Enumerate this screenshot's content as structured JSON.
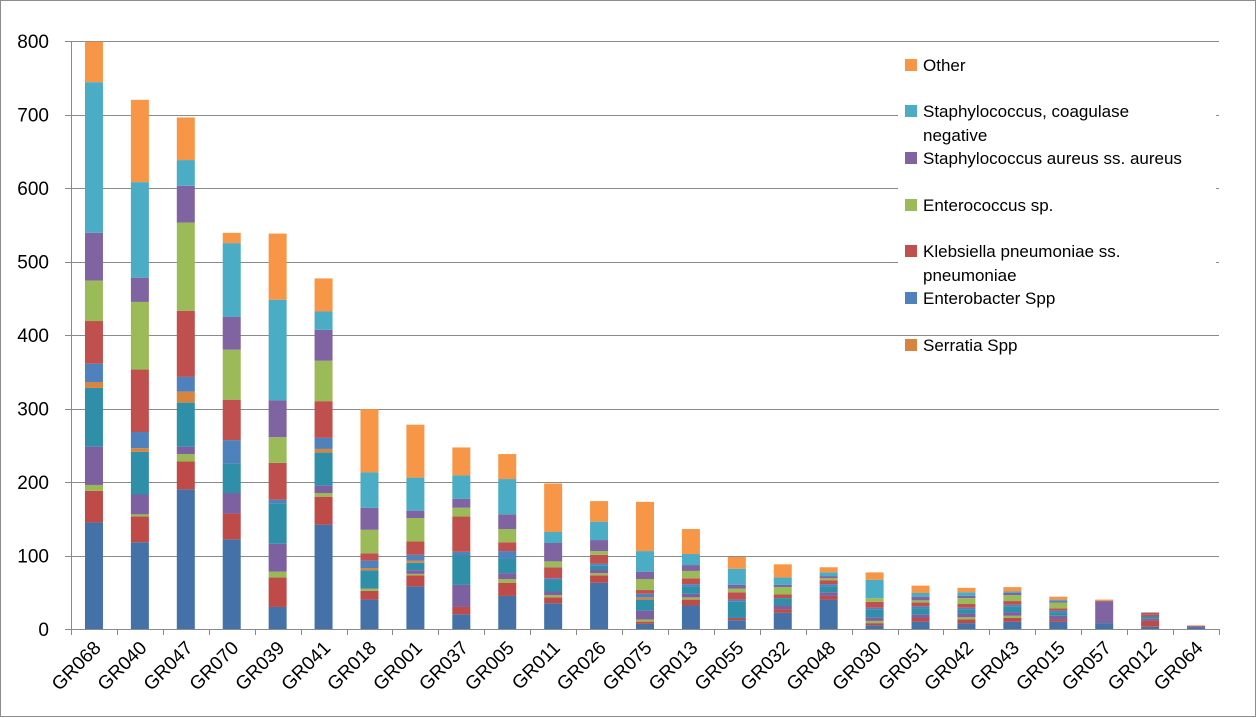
{
  "chart_data": {
    "type": "bar",
    "stacked": true,
    "categories": [
      "GR068",
      "GR040",
      "GR047",
      "GR070",
      "GR039",
      "GR041",
      "GR018",
      "GR001",
      "GR037",
      "GR005",
      "GR011",
      "GR026",
      "GR075",
      "GR013",
      "GR055",
      "GR032",
      "GR048",
      "GR030",
      "GR051",
      "GR042",
      "GR043",
      "GR015",
      "GR057",
      "GR012",
      "GR064"
    ],
    "ylim": [
      0,
      800
    ],
    "yticks": [
      0,
      100,
      200,
      300,
      400,
      500,
      600,
      700,
      800
    ],
    "grid": true,
    "legend_position": "right",
    "series": [
      {
        "name": "",
        "color": "#4472a8",
        "values": [
          145,
          118,
          190,
          122,
          30,
          142,
          40,
          58,
          20,
          45,
          35,
          63,
          7,
          32,
          12,
          22,
          40,
          5,
          10,
          8,
          10,
          10,
          8,
          3,
          2
        ]
      },
      {
        "name": "",
        "color": "#be4b48",
        "values": [
          43,
          35,
          38,
          35,
          40,
          38,
          12,
          15,
          10,
          18,
          8,
          10,
          3,
          8,
          3,
          5,
          5,
          3,
          5,
          5,
          5,
          3,
          0,
          8,
          0
        ]
      },
      {
        "name": "",
        "color": "#98b954",
        "values": [
          8,
          3,
          10,
          0,
          8,
          5,
          3,
          2,
          0,
          5,
          3,
          3,
          3,
          3,
          0,
          0,
          0,
          3,
          0,
          3,
          3,
          0,
          0,
          0,
          0
        ]
      },
      {
        "name": "",
        "color": "#7d60a0",
        "values": [
          52,
          27,
          10,
          28,
          38,
          10,
          0,
          5,
          30,
          8,
          5,
          5,
          12,
          5,
          0,
          5,
          5,
          5,
          5,
          5,
          5,
          5,
          0,
          3,
          0
        ]
      },
      {
        "name": "",
        "color": "#2f8ea8",
        "values": [
          80,
          58,
          60,
          40,
          55,
          45,
          25,
          10,
          40,
          20,
          15,
          5,
          15,
          10,
          22,
          10,
          8,
          10,
          8,
          5,
          8,
          5,
          0,
          3,
          0
        ]
      },
      {
        "name": "Serratia Spp",
        "color": "#d6843e",
        "values": [
          8,
          5,
          15,
          0,
          0,
          5,
          3,
          3,
          0,
          0,
          0,
          0,
          3,
          0,
          0,
          0,
          0,
          0,
          0,
          0,
          0,
          0,
          0,
          0,
          0
        ]
      },
      {
        "name": "Enterobacter Spp",
        "color": "#4f81bd",
        "values": [
          25,
          22,
          20,
          32,
          5,
          15,
          10,
          8,
          5,
          10,
          3,
          3,
          5,
          3,
          3,
          0,
          3,
          3,
          3,
          3,
          2,
          2,
          0,
          0,
          0
        ]
      },
      {
        "name": "Klebsiella pneumoniae ss. pneumoniae",
        "color": "#c0504d",
        "values": [
          58,
          85,
          90,
          55,
          50,
          50,
          10,
          18,
          48,
          12,
          15,
          12,
          5,
          8,
          10,
          5,
          5,
          8,
          5,
          5,
          5,
          3,
          0,
          3,
          0
        ]
      },
      {
        "name": "Enterococcus sp.",
        "color": "#9bbb59",
        "values": [
          55,
          92,
          120,
          68,
          35,
          55,
          32,
          32,
          12,
          18,
          8,
          5,
          15,
          10,
          5,
          10,
          3,
          5,
          3,
          8,
          8,
          8,
          0,
          0,
          0
        ]
      },
      {
        "name": "Staphylococcus aureus ss. aureus",
        "color": "#8064a2",
        "values": [
          65,
          33,
          50,
          45,
          50,
          42,
          30,
          10,
          12,
          20,
          25,
          15,
          10,
          8,
          5,
          3,
          3,
          0,
          5,
          3,
          3,
          2,
          30,
          2,
          2
        ]
      },
      {
        "name": "Staphylococcus, coagulase negative",
        "color": "#4bacc6",
        "values": [
          205,
          130,
          35,
          100,
          137,
          25,
          48,
          45,
          32,
          48,
          15,
          25,
          28,
          15,
          22,
          10,
          5,
          25,
          5,
          5,
          2,
          2,
          0,
          0,
          0
        ]
      },
      {
        "name": "Other",
        "color": "#f79646",
        "values": [
          55,
          112,
          58,
          14,
          90,
          45,
          86,
          72,
          38,
          34,
          66,
          28,
          67,
          34,
          16,
          18,
          7,
          10,
          10,
          6,
          6,
          4,
          2,
          1,
          1
        ]
      }
    ]
  }
}
